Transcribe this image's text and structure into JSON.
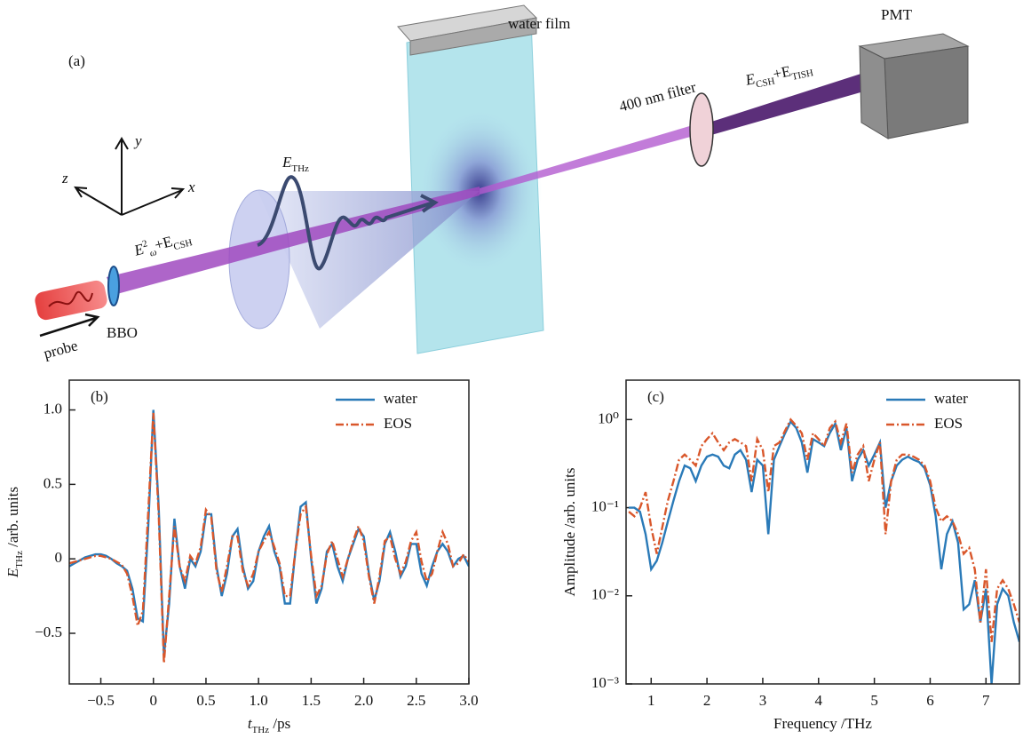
{
  "diagram": {
    "panel_label": "(a)",
    "water_film": "water film",
    "pmt": "PMT",
    "filter": "400 nm filter",
    "bbo": "BBO",
    "probe": "probe",
    "axes": {
      "x": "x",
      "y": "y",
      "z": "z"
    },
    "e_thz": {
      "main": "E",
      "sub": "THz"
    },
    "input_field": {
      "main": "E",
      "sup": "2",
      "sub": "ω",
      "plus": "+E",
      "sub2": "CSH"
    },
    "output_field": {
      "main": "E",
      "sub": "CSH",
      "plus": "+E",
      "sub2": "TISH"
    }
  },
  "chart_data": [
    {
      "type": "line",
      "panel_label": "(b)",
      "x_label": {
        "main": "t",
        "sub": "THz",
        "rest": " /ps"
      },
      "y_label": {
        "main": "E",
        "sub": "THz",
        "rest": " /arb. units"
      },
      "xlim": [
        -0.8,
        3.0
      ],
      "ylim": [
        -0.84,
        1.2
      ],
      "xticks": [
        {
          "value": -0.5,
          "label": "−0.5"
        },
        0,
        0.5,
        {
          "value": 1,
          "label": "1.0"
        },
        1.5,
        {
          "value": 2,
          "label": "2.0"
        },
        2.5,
        {
          "value": 3,
          "label": "3.0"
        }
      ],
      "yticks": [
        {
          "value": -0.5,
          "label": "−0.5"
        },
        0,
        0.5,
        {
          "value": 1,
          "label": "1.0"
        }
      ],
      "legend": "upper right",
      "x": [
        -0.8,
        -0.75,
        -0.7,
        -0.65,
        -0.6,
        -0.55,
        -0.5,
        -0.45,
        -0.4,
        -0.35,
        -0.3,
        -0.25,
        -0.2,
        -0.15,
        -0.1,
        -0.05,
        0,
        0.05,
        0.1,
        0.15,
        0.2,
        0.25,
        0.3,
        0.35,
        0.4,
        0.45,
        0.5,
        0.55,
        0.6,
        0.65,
        0.7,
        0.75,
        0.8,
        0.85,
        0.9,
        0.95,
        1.0,
        1.05,
        1.1,
        1.15,
        1.2,
        1.25,
        1.3,
        1.35,
        1.4,
        1.45,
        1.5,
        1.55,
        1.6,
        1.65,
        1.7,
        1.75,
        1.8,
        1.85,
        1.9,
        1.95,
        2.0,
        2.05,
        2.1,
        2.15,
        2.2,
        2.25,
        2.3,
        2.35,
        2.4,
        2.45,
        2.5,
        2.55,
        2.6,
        2.65,
        2.7,
        2.75,
        2.8,
        2.85,
        2.9,
        2.95,
        3.0
      ],
      "series": [
        {
          "name": "water",
          "color": "#2a7ab8",
          "line_style": "solid",
          "values": [
            -0.05,
            -0.03,
            -0.01,
            0.01,
            0.02,
            0.03,
            0.03,
            0.02,
            0.0,
            -0.03,
            -0.05,
            -0.08,
            -0.2,
            -0.4,
            -0.42,
            0.2,
            1.0,
            0.35,
            -0.65,
            -0.3,
            0.27,
            -0.05,
            -0.2,
            0.0,
            -0.05,
            0.05,
            0.3,
            0.3,
            -0.05,
            -0.25,
            -0.1,
            0.15,
            0.2,
            -0.05,
            -0.2,
            -0.15,
            0.05,
            0.15,
            0.22,
            0.05,
            -0.05,
            -0.3,
            -0.3,
            0.05,
            0.35,
            0.38,
            0.0,
            -0.3,
            -0.2,
            0.05,
            0.1,
            -0.05,
            -0.15,
            0.0,
            0.1,
            0.2,
            0.15,
            -0.1,
            -0.28,
            -0.15,
            0.1,
            0.18,
            0.05,
            -0.12,
            -0.05,
            0.1,
            0.1,
            -0.1,
            -0.18,
            -0.05,
            0.05,
            0.1,
            0.05,
            -0.05,
            0.0,
            0.02,
            -0.05
          ]
        },
        {
          "name": "EOS",
          "color": "#d9572b",
          "line_style": "dashdot",
          "values": [
            -0.03,
            -0.02,
            -0.01,
            0.0,
            0.01,
            0.02,
            0.02,
            0.01,
            0.0,
            -0.02,
            -0.04,
            -0.1,
            -0.25,
            -0.45,
            -0.35,
            0.3,
            0.98,
            0.3,
            -0.7,
            -0.25,
            0.22,
            -0.05,
            -0.15,
            0.02,
            -0.03,
            0.08,
            0.33,
            0.28,
            -0.08,
            -0.22,
            -0.05,
            0.15,
            0.15,
            -0.08,
            -0.18,
            -0.1,
            0.05,
            0.12,
            0.18,
            0.08,
            -0.03,
            -0.25,
            -0.25,
            0.05,
            0.3,
            0.35,
            0.02,
            -0.25,
            -0.18,
            0.03,
            0.12,
            0.0,
            -0.12,
            0.0,
            0.12,
            0.22,
            0.12,
            -0.12,
            -0.3,
            -0.12,
            0.12,
            0.15,
            0.0,
            -0.1,
            -0.02,
            0.12,
            0.18,
            -0.02,
            -0.15,
            -0.1,
            0.05,
            0.18,
            0.1,
            -0.05,
            -0.03,
            0.03,
            -0.02
          ]
        }
      ]
    },
    {
      "type": "line",
      "panel_label": "(c)",
      "x_label": "Frequency /THz",
      "y_label": "Amplitude /arb. units",
      "xlim": [
        0.55,
        7.6
      ],
      "ylim": [
        0.001,
        2.8
      ],
      "y_scale": "log",
      "xticks": [
        1,
        2,
        3,
        4,
        5,
        6,
        7
      ],
      "yticks": [
        {
          "value": 0.001,
          "label": "10⁻³"
        },
        {
          "value": 0.01,
          "label": "10⁻²"
        },
        {
          "value": 0.1,
          "label": "10⁻¹"
        },
        {
          "value": 1,
          "label": "10⁰"
        }
      ],
      "legend": "upper right",
      "x": [
        0.6,
        0.7,
        0.8,
        0.9,
        1.0,
        1.1,
        1.2,
        1.3,
        1.4,
        1.5,
        1.6,
        1.7,
        1.8,
        1.9,
        2.0,
        2.1,
        2.2,
        2.3,
        2.4,
        2.5,
        2.6,
        2.7,
        2.8,
        2.9,
        3.0,
        3.1,
        3.2,
        3.3,
        3.4,
        3.5,
        3.6,
        3.7,
        3.8,
        3.9,
        4.0,
        4.1,
        4.2,
        4.3,
        4.4,
        4.5,
        4.6,
        4.7,
        4.8,
        4.9,
        5.0,
        5.1,
        5.2,
        5.3,
        5.4,
        5.5,
        5.6,
        5.7,
        5.8,
        5.9,
        6.0,
        6.1,
        6.2,
        6.3,
        6.4,
        6.5,
        6.6,
        6.7,
        6.8,
        6.9,
        7.0,
        7.1,
        7.2,
        7.3,
        7.4,
        7.5,
        7.6
      ],
      "series": [
        {
          "name": "water",
          "color": "#2a7ab8",
          "line_style": "solid",
          "values": [
            0.1,
            0.1,
            0.09,
            0.05,
            0.02,
            0.025,
            0.04,
            0.07,
            0.12,
            0.2,
            0.3,
            0.28,
            0.2,
            0.3,
            0.38,
            0.4,
            0.38,
            0.3,
            0.28,
            0.4,
            0.45,
            0.35,
            0.15,
            0.35,
            0.3,
            0.05,
            0.35,
            0.5,
            0.7,
            0.95,
            0.8,
            0.55,
            0.25,
            0.6,
            0.55,
            0.5,
            0.7,
            0.9,
            0.45,
            0.8,
            0.2,
            0.35,
            0.45,
            0.3,
            0.4,
            0.55,
            0.1,
            0.2,
            0.3,
            0.35,
            0.38,
            0.35,
            0.33,
            0.28,
            0.18,
            0.08,
            0.02,
            0.05,
            0.07,
            0.04,
            0.007,
            0.008,
            0.015,
            0.005,
            0.012,
            0.001,
            0.008,
            0.012,
            0.01,
            0.005,
            0.003
          ]
        },
        {
          "name": "EOS",
          "color": "#d9572b",
          "line_style": "dashdot",
          "values": [
            0.09,
            0.08,
            0.1,
            0.15,
            0.06,
            0.03,
            0.06,
            0.12,
            0.2,
            0.35,
            0.4,
            0.35,
            0.3,
            0.5,
            0.6,
            0.7,
            0.55,
            0.45,
            0.55,
            0.6,
            0.55,
            0.5,
            0.2,
            0.6,
            0.45,
            0.15,
            0.5,
            0.55,
            0.75,
            1.0,
            0.85,
            0.7,
            0.35,
            0.7,
            0.6,
            0.5,
            0.8,
            0.95,
            0.55,
            0.9,
            0.25,
            0.4,
            0.5,
            0.2,
            0.35,
            0.55,
            0.05,
            0.2,
            0.35,
            0.4,
            0.4,
            0.38,
            0.35,
            0.3,
            0.2,
            0.1,
            0.07,
            0.08,
            0.07,
            0.05,
            0.03,
            0.035,
            0.02,
            0.005,
            0.02,
            0.003,
            0.012,
            0.015,
            0.012,
            0.008,
            0.005
          ]
        }
      ]
    }
  ]
}
